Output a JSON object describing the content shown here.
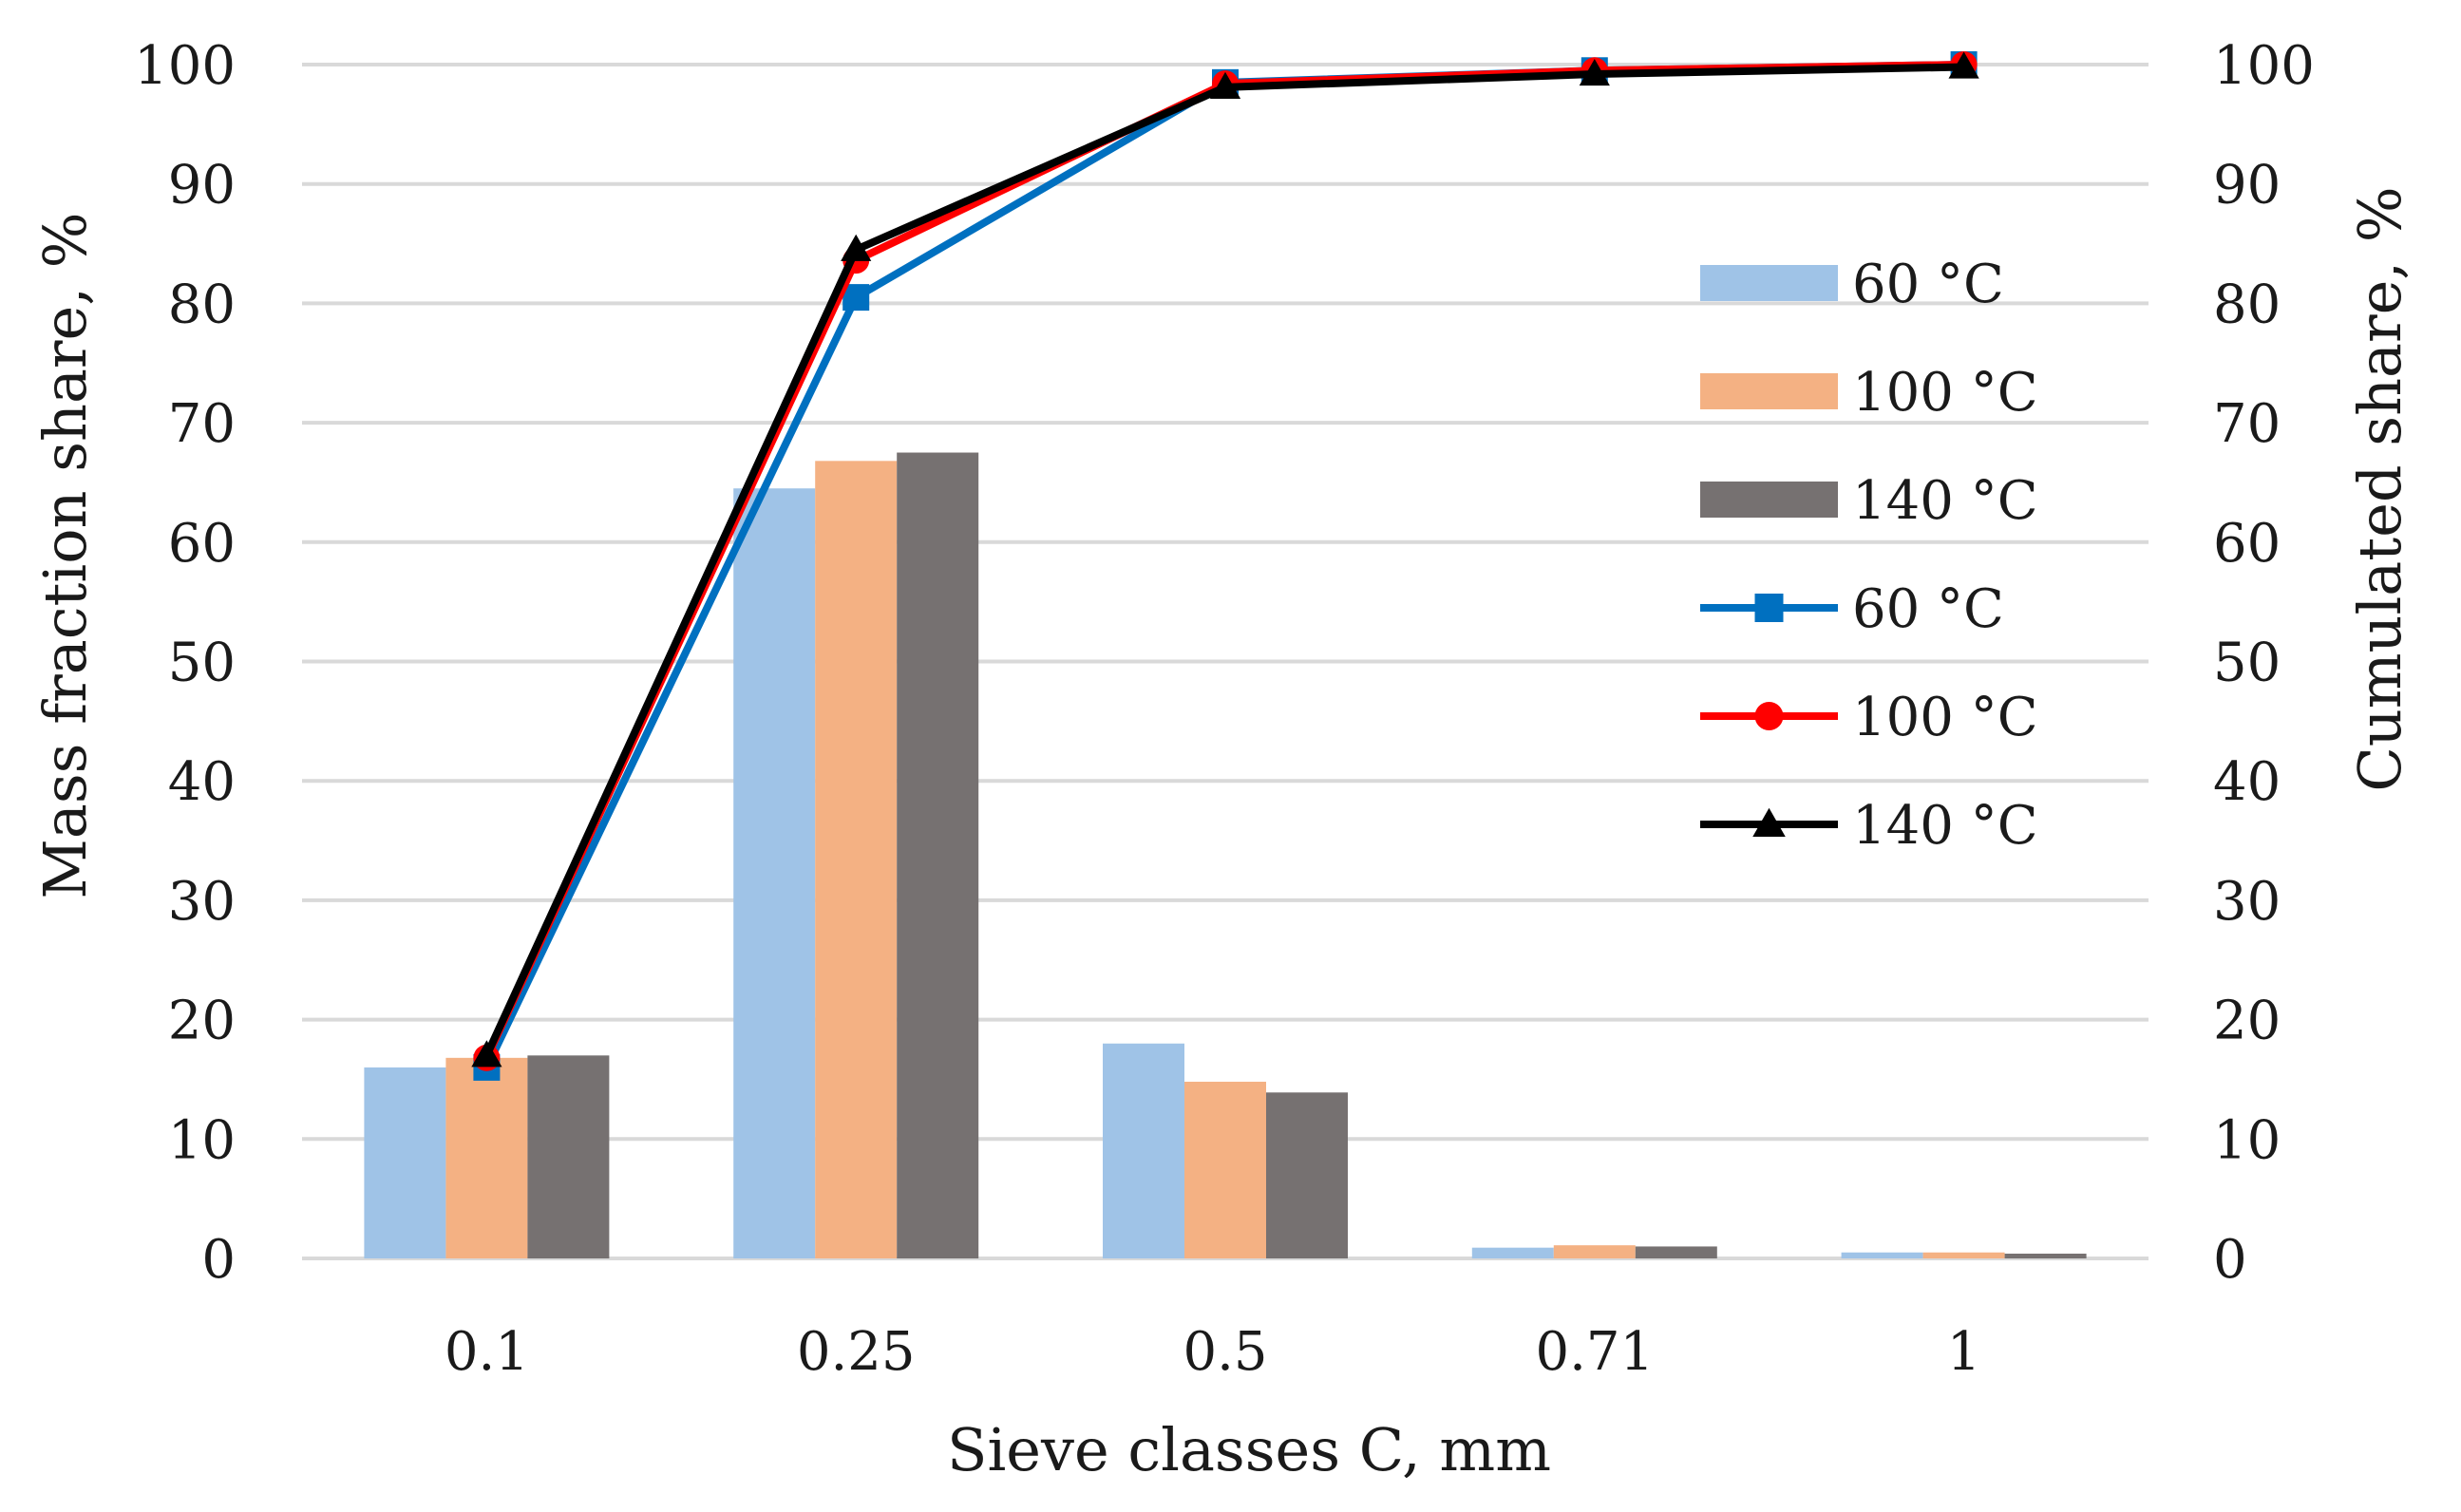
{
  "chart_data": {
    "type": "bar",
    "categories": [
      "0.1",
      "0.25",
      "0.5",
      "0.71",
      "1"
    ],
    "xlabel": "Sieve classes C, mm",
    "ylabel": "Mass fraction share, %",
    "y2label": "Cumulated share, %",
    "ylim": [
      0,
      100
    ],
    "y2lim": [
      0,
      100
    ],
    "yticks": [
      "0",
      "10",
      "20",
      "30",
      "40",
      "50",
      "60",
      "70",
      "80",
      "90",
      "100"
    ],
    "grid": true,
    "legend_position": "right-inside",
    "bar_series": [
      {
        "name": "60 °C",
        "color": "#9fc3e7",
        "values": [
          16.0,
          64.5,
          18.0,
          0.9,
          0.5
        ]
      },
      {
        "name": "100 °C",
        "color": "#f4b183",
        "values": [
          16.8,
          66.8,
          14.8,
          1.1,
          0.5
        ]
      },
      {
        "name": "140 °C",
        "color": "#767171",
        "values": [
          17.0,
          67.5,
          13.9,
          1.0,
          0.4
        ]
      }
    ],
    "line_series": [
      {
        "name": "60 °C",
        "color": "#0070c0",
        "marker": "square",
        "values": [
          16.0,
          80.5,
          98.5,
          99.5,
          100
        ]
      },
      {
        "name": "100 °C",
        "color": "#ff0000",
        "marker": "circle",
        "values": [
          16.8,
          83.6,
          98.4,
          99.5,
          100
        ]
      },
      {
        "name": "140 °C",
        "color": "#000000",
        "marker": "triangle",
        "values": [
          17.0,
          84.5,
          98.1,
          99.2,
          99.8
        ]
      }
    ]
  }
}
